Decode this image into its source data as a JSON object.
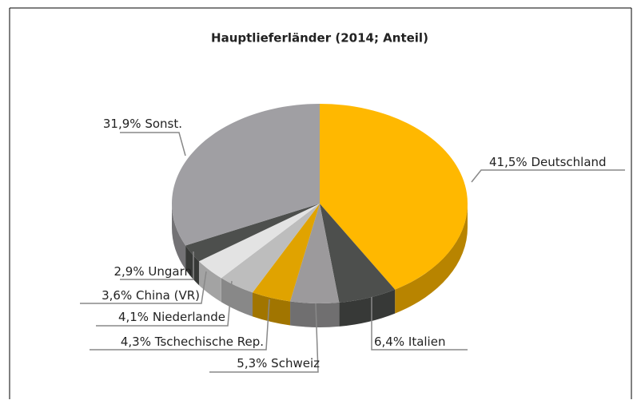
{
  "chart_data": {
    "type": "pie3d",
    "title": "Hauptlieferländer (2014; Anteil)",
    "categories": [
      "Deutschland",
      "Italien",
      "Schweiz",
      "Tschechische Rep.",
      "Niederlande",
      "China (VR)",
      "Ungarn",
      "Sonst."
    ],
    "values": [
      41.5,
      6.4,
      5.3,
      4.3,
      4.1,
      3.6,
      2.9,
      31.9
    ],
    "value_labels": [
      "41,5%",
      "6,4%",
      "5,3%",
      "4,3%",
      "4,1%",
      "3,6%",
      "2,9%",
      "31,9%"
    ],
    "colors": [
      "#ffb800",
      "#4d4f4d",
      "#9c9a9c",
      "#e0a300",
      "#bdbdbd",
      "#e3e3e3",
      "#4d4f4d",
      "#a09fa3"
    ]
  }
}
